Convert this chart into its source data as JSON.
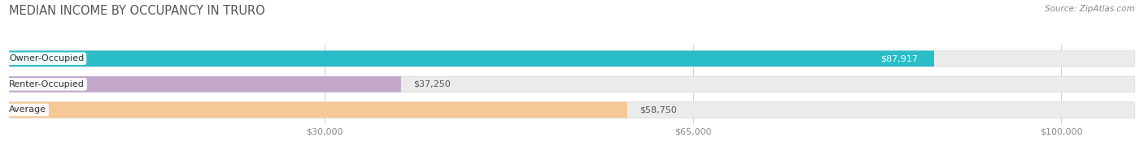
{
  "title": "MEDIAN INCOME BY OCCUPANCY IN TRURO",
  "source": "Source: ZipAtlas.com",
  "categories": [
    "Owner-Occupied",
    "Renter-Occupied",
    "Average"
  ],
  "values": [
    87917,
    37250,
    58750
  ],
  "bar_colors": [
    "#29bdc8",
    "#c3a8cc",
    "#f5c896"
  ],
  "x_ticks": [
    30000,
    65000,
    100000
  ],
  "x_tick_labels": [
    "$30,000",
    "$65,000",
    "$100,000"
  ],
  "xmax": 107000,
  "value_labels": [
    "$87,917",
    "$37,250",
    "$58,750"
  ],
  "value_label_colors": [
    "#ffffff",
    "#666666",
    "#666666"
  ],
  "value_inside": [
    true,
    false,
    false
  ],
  "title_fontsize": 10.5,
  "bar_height": 0.62,
  "bar_gap": 0.38,
  "background_color": "#ffffff",
  "bg_bar_color": "#ebebeb"
}
